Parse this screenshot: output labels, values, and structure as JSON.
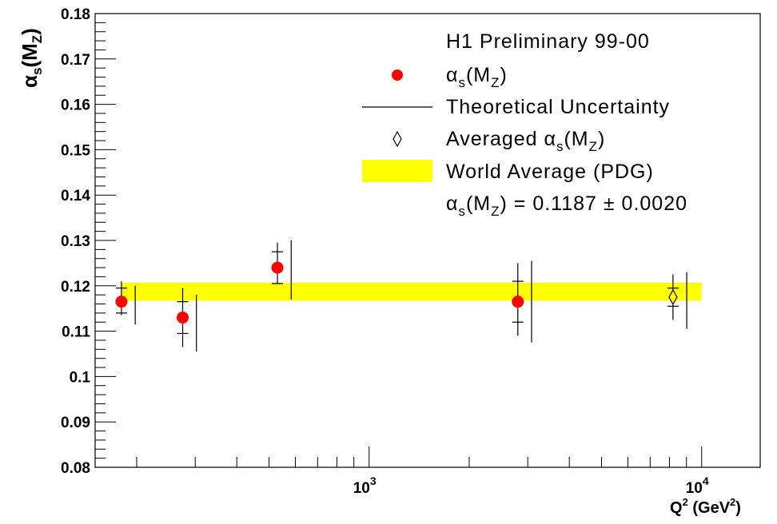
{
  "chart_data": {
    "type": "scatter",
    "title": "",
    "xlabel": {
      "base": "Q",
      "sup1": "2",
      "unit_open": " (GeV",
      "sup2": "2",
      "unit_close": ")"
    },
    "ylabel": {
      "base": "α",
      "sub1": "s",
      "mid": "(M",
      "sub2": "Z",
      "close": ")"
    },
    "x_scale": "log",
    "xlim": [
      150,
      15000
    ],
    "ylim": [
      0.08,
      0.18
    ],
    "y_tick_labels": [
      "0.08",
      "0.09",
      "0.1",
      "0.11",
      "0.12",
      "0.13",
      "0.14",
      "0.15",
      "0.16",
      "0.17",
      "0.18"
    ],
    "x_tick_labels": [
      {
        "value": 1000,
        "base": "10",
        "exp": "3"
      },
      {
        "value": 10000,
        "base": "10",
        "exp": "4"
      }
    ],
    "colors": {
      "points": "#ff0000",
      "band": "#ffff00",
      "axes": "#000000"
    },
    "band": {
      "name": "World Average (PDG)",
      "center": 0.1187,
      "error": 0.002,
      "xrange": [
        180,
        10000
      ]
    },
    "series": [
      {
        "name": "αs(MZ)",
        "marker": "filled-circle",
        "points": [
          {
            "x": 180,
            "y": 0.1165,
            "stat_err": [
              0.0025,
              0.003
            ],
            "exp_err": [
              0.003,
              0.0045
            ],
            "theory_err": [
              0.005,
              0.0035
            ]
          },
          {
            "x": 275,
            "y": 0.113,
            "stat_err": [
              0.0035,
              0.0035
            ],
            "exp_err": [
              0.0065,
              0.0065
            ],
            "theory_err": [
              0.0075,
              0.005
            ]
          },
          {
            "x": 530,
            "y": 0.124,
            "stat_err": [
              0.0035,
              0.0035
            ],
            "exp_err": [
              0.0035,
              0.0055
            ],
            "theory_err": [
              0.007,
              0.006
            ]
          },
          {
            "x": 2800,
            "y": 0.1165,
            "stat_err": [
              0.0045,
              0.0045
            ],
            "exp_err": [
              0.0075,
              0.0085
            ],
            "theory_err": [
              0.009,
              0.009
            ]
          },
          {
            "x": 8200,
            "y": 0.1175,
            "stat_err": [
              0.002,
              0.002
            ],
            "exp_err": [
              0.005,
              0.005
            ],
            "theory_err": [
              0.007,
              0.0055
            ],
            "marker": "open-diamond"
          }
        ]
      }
    ],
    "legend": {
      "placement": "top-right",
      "header": "H1 Preliminary 99-00",
      "entries": [
        {
          "marker": "filled-circle",
          "base": "α",
          "sub1": "s",
          "mid": "(M",
          "sub2": "Z",
          "tail": ")"
        },
        {
          "marker": "line",
          "base": "Theoretical Uncertainty"
        },
        {
          "marker": "open-diamond",
          "base": "Averaged α",
          "sub1": "s",
          "mid": "(M",
          "sub2": "Z",
          "tail": ")"
        },
        {
          "marker": "yellow-band",
          "base": "World Average (PDG)"
        }
      ],
      "world_average_value": {
        "base": "α",
        "sub1": "s",
        "mid": "(M",
        "sub2": "Z",
        "tail": ") = 0.1187 ± 0.0020"
      }
    }
  }
}
